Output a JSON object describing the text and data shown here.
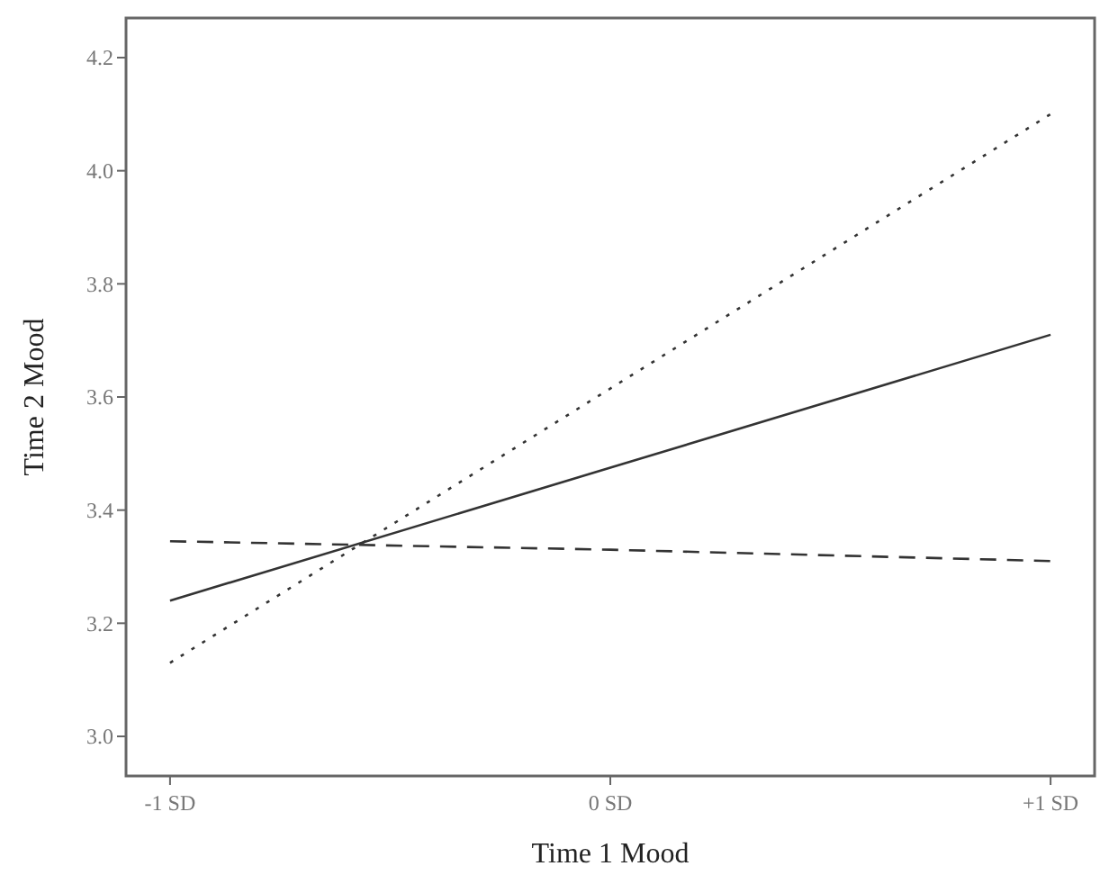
{
  "chart_data": {
    "type": "line",
    "xlabel": "Time 1 Mood",
    "ylabel": "Time 2 Mood",
    "categories": [
      "-1 SD",
      "0 SD",
      "+1 SD"
    ],
    "series": [
      {
        "color": "#333333",
        "line_style": "solid",
        "values": [
          3.24,
          3.475,
          3.71
        ]
      },
      {
        "color": "#333333",
        "line_style": "dotted",
        "values": [
          3.13,
          3.615,
          4.1
        ]
      },
      {
        "color": "#333333",
        "line_style": "dashed",
        "values": [
          3.345,
          3.33,
          3.31
        ]
      }
    ],
    "ylim": [
      2.93,
      4.27
    ],
    "yticks": [
      {
        "value": 3,
        "label": "3.0"
      },
      3.2,
      3.4,
      3.6,
      3.8,
      {
        "value": 4,
        "label": "4.0"
      },
      4.2
    ],
    "grid": false,
    "marker": "none"
  }
}
